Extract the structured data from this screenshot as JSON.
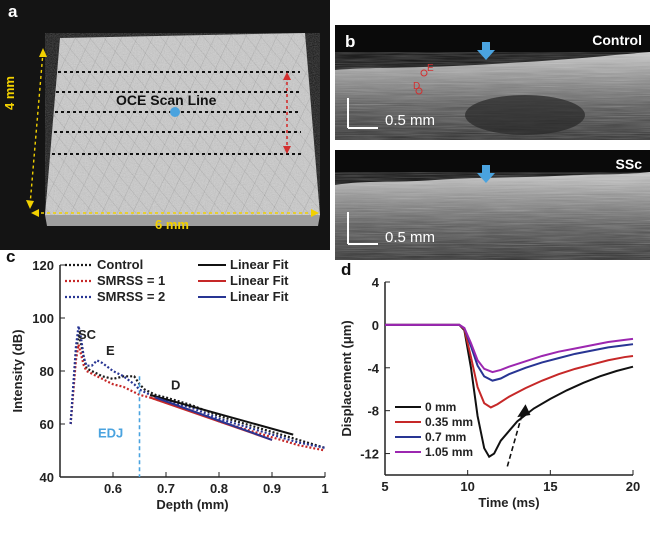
{
  "panel_a": {
    "letter": "a",
    "height_label": "4 mm",
    "width_label": "6 mm",
    "scan_label": "OCE Scan Line"
  },
  "panel_b": {
    "letter": "b",
    "top_title": "Control",
    "bottom_title": "SSc",
    "top_scalebar": "0.5 mm",
    "bottom_scalebar": "0.5 mm",
    "layer_e": "E",
    "layer_d": "D"
  },
  "chart_data": [
    {
      "panel": "c",
      "type": "line",
      "xlabel": "Depth (mm)",
      "ylabel": "Intensity (dB)",
      "xlim": [
        0.5,
        1.0
      ],
      "ylim": [
        40,
        120
      ],
      "xticks": [
        "0.6",
        "0.7",
        "0.8",
        "0.9",
        "1"
      ],
      "yticks": [
        "40",
        "60",
        "80",
        "100",
        "120"
      ],
      "legend_left": [
        "Control",
        "SMRSS = 1",
        "SMRSS = 2"
      ],
      "legend_right": [
        "Linear Fit",
        "Linear Fit",
        "Linear Fit"
      ],
      "annotations": [
        "SC",
        "E",
        "D",
        "EDJ"
      ],
      "edj_depth": 0.65,
      "series": [
        {
          "name": "Control",
          "style": "dotted",
          "color": "#1a1a1a",
          "x": [
            0.52,
            0.53,
            0.535,
            0.54,
            0.545,
            0.55,
            0.56,
            0.58,
            0.6,
            0.62,
            0.64,
            0.65,
            0.66,
            0.68,
            0.7,
            0.75,
            0.8,
            0.85,
            0.9,
            0.95,
            1.0
          ],
          "y": [
            60,
            86,
            94,
            90,
            85,
            81,
            80,
            78,
            77,
            78,
            78,
            75,
            73,
            71,
            70,
            67,
            63,
            60,
            57,
            54,
            51
          ]
        },
        {
          "name": "SMRSS = 1",
          "style": "dotted",
          "color": "#c62828",
          "x": [
            0.52,
            0.53,
            0.535,
            0.54,
            0.545,
            0.55,
            0.56,
            0.58,
            0.6,
            0.62,
            0.64,
            0.65,
            0.67,
            0.7,
            0.75,
            0.8,
            0.85,
            0.9,
            0.95,
            1.0
          ],
          "y": [
            60,
            84,
            90,
            86,
            82,
            80,
            79,
            77,
            75,
            74,
            72,
            71,
            70,
            68,
            65,
            61,
            58,
            55,
            52,
            50
          ]
        },
        {
          "name": "SMRSS = 2",
          "style": "dotted",
          "color": "#283593",
          "x": [
            0.52,
            0.53,
            0.535,
            0.54,
            0.545,
            0.55,
            0.56,
            0.57,
            0.58,
            0.6,
            0.62,
            0.64,
            0.65,
            0.67,
            0.7,
            0.75,
            0.8,
            0.85,
            0.9,
            0.95,
            1.0
          ],
          "y": [
            60,
            89,
            97,
            92,
            85,
            82,
            82,
            84,
            83,
            80,
            78,
            75,
            73,
            71,
            69,
            66,
            62,
            59,
            56,
            53,
            51
          ]
        },
        {
          "name": "Linear Fit",
          "style": "solid",
          "color": "#111111",
          "x": [
            0.67,
            0.94
          ],
          "y": [
            71,
            56
          ]
        },
        {
          "name": "Linear Fit",
          "style": "solid",
          "color": "#c62828",
          "x": [
            0.67,
            0.9
          ],
          "y": [
            70,
            54
          ]
        },
        {
          "name": "Linear Fit",
          "style": "solid",
          "color": "#283593",
          "x": [
            0.68,
            0.9
          ],
          "y": [
            70,
            54
          ]
        }
      ]
    },
    {
      "panel": "d",
      "type": "line",
      "xlabel": "Time (ms)",
      "ylabel": "Displacement (μm)",
      "xlim": [
        5,
        20
      ],
      "ylim": [
        -14,
        4
      ],
      "xticks": [
        "5",
        "10",
        "15",
        "20"
      ],
      "yticks": [
        "4",
        "0",
        "-4",
        "-8",
        "-12"
      ],
      "legend": [
        "0 mm",
        "0.35 mm",
        "0.7 mm",
        "1.05 mm"
      ],
      "series": [
        {
          "name": "0 mm",
          "color": "#111111",
          "x": [
            5,
            9.5,
            9.8,
            10.2,
            10.6,
            11.0,
            11.3,
            11.6,
            12.0,
            13.0,
            14.0,
            15.0,
            16.0,
            17.0,
            18.0,
            19.0,
            20.0
          ],
          "y": [
            0,
            0,
            -0.5,
            -4,
            -8.5,
            -11.5,
            -12.3,
            -12.0,
            -10.8,
            -9.0,
            -7.8,
            -6.9,
            -6.1,
            -5.4,
            -4.8,
            -4.3,
            -3.9
          ]
        },
        {
          "name": "0.35 mm",
          "color": "#c62828",
          "x": [
            5,
            9.5,
            9.8,
            10.2,
            10.6,
            11.0,
            11.4,
            11.8,
            12.5,
            13.5,
            14.5,
            15.5,
            16.5,
            17.5,
            18.5,
            19.5,
            20.0
          ],
          "y": [
            0,
            0,
            -0.4,
            -3.0,
            -5.8,
            -7.3,
            -7.7,
            -7.4,
            -6.7,
            -5.9,
            -5.2,
            -4.6,
            -4.1,
            -3.7,
            -3.3,
            -3.0,
            -2.9
          ]
        },
        {
          "name": "0.7 mm",
          "color": "#283593",
          "x": [
            5,
            9.5,
            9.8,
            10.2,
            10.6,
            11.0,
            11.5,
            12.0,
            12.5,
            13.5,
            14.5,
            15.5,
            16.5,
            17.5,
            18.5,
            19.5,
            20.0
          ],
          "y": [
            0,
            0,
            -0.3,
            -2.0,
            -3.8,
            -4.8,
            -5.2,
            -5.0,
            -4.6,
            -4.0,
            -3.5,
            -3.1,
            -2.7,
            -2.4,
            -2.1,
            -1.9,
            -1.8
          ]
        },
        {
          "name": "1.05 mm",
          "color": "#9c27b0",
          "x": [
            5,
            9.5,
            9.8,
            10.2,
            10.6,
            11.0,
            11.5,
            12.0,
            12.5,
            13.5,
            14.5,
            15.5,
            16.5,
            17.5,
            18.5,
            19.5,
            20.0
          ],
          "y": [
            0,
            0,
            -0.3,
            -1.7,
            -3.3,
            -4.1,
            -4.4,
            -4.2,
            -3.9,
            -3.4,
            -2.9,
            -2.5,
            -2.2,
            -1.9,
            -1.6,
            -1.4,
            -1.3
          ]
        }
      ]
    }
  ]
}
